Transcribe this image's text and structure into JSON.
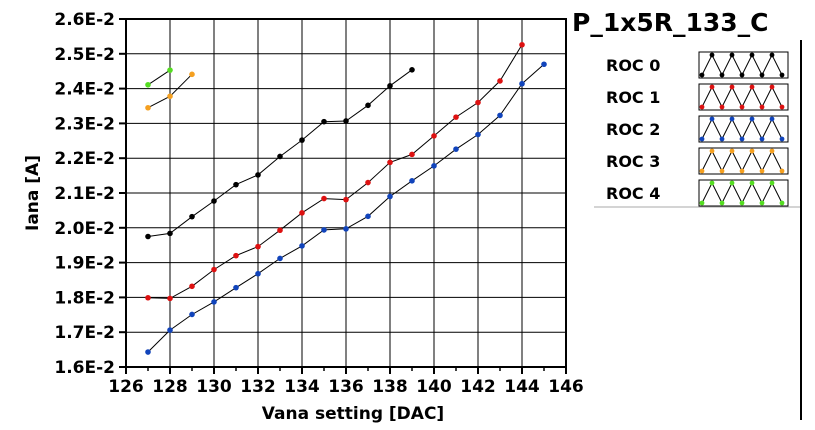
{
  "chart_data": {
    "type": "line",
    "title": "P_1x5R_133_C",
    "xlabel": "Vana setting [DAC]",
    "ylabel": "Iana [A]",
    "xlim": [
      126,
      146
    ],
    "ylim": [
      0.016,
      0.026
    ],
    "xticks": [
      126,
      128,
      130,
      132,
      134,
      136,
      138,
      140,
      142,
      144,
      146
    ],
    "yticks": [
      0.016,
      0.017,
      0.018,
      0.019,
      0.02,
      0.021,
      0.022,
      0.023,
      0.024,
      0.025,
      0.026
    ],
    "xtick_labels": [
      "126",
      "128",
      "130",
      "132",
      "134",
      "136",
      "138",
      "140",
      "142",
      "144",
      "146"
    ],
    "ytick_labels": [
      "1.6E-2",
      "1.7E-2",
      "1.8E-2",
      "1.9E-2",
      "2.0E-2",
      "2.1E-2",
      "2.2E-2",
      "2.3E-2",
      "2.4E-2",
      "2.5E-2",
      "2.6E-2"
    ],
    "grid": true,
    "legend_position": "right",
    "series": [
      {
        "name": "ROC 0",
        "color": "#000000",
        "x": [
          127,
          128,
          129,
          130,
          131,
          132,
          133,
          134,
          135,
          136,
          137,
          138,
          139
        ],
        "y": [
          0.01975,
          0.01984,
          0.02032,
          0.02077,
          0.02124,
          0.02152,
          0.02205,
          0.02252,
          0.02305,
          0.02307,
          0.02352,
          0.02408,
          0.02454
        ]
      },
      {
        "name": "ROC 1",
        "color": "#dd1111",
        "x": [
          127,
          128,
          129,
          130,
          131,
          132,
          133,
          134,
          135,
          136,
          137,
          138,
          139,
          140,
          141,
          142,
          143,
          144
        ],
        "y": [
          0.01799,
          0.01797,
          0.01832,
          0.0188,
          0.0192,
          0.01946,
          0.01993,
          0.02043,
          0.02084,
          0.02081,
          0.0213,
          0.02188,
          0.02211,
          0.02264,
          0.02318,
          0.0236,
          0.02422,
          0.02526
        ]
      },
      {
        "name": "ROC 2",
        "color": "#1144bb",
        "x": [
          127,
          128,
          129,
          130,
          131,
          132,
          133,
          134,
          135,
          136,
          137,
          138,
          139,
          140,
          141,
          142,
          143,
          144,
          145
        ],
        "y": [
          0.01643,
          0.01706,
          0.01751,
          0.01787,
          0.01828,
          0.01868,
          0.01912,
          0.01948,
          0.01994,
          0.01997,
          0.02033,
          0.0209,
          0.02135,
          0.02178,
          0.02226,
          0.02268,
          0.02323,
          0.02414,
          0.0247
        ]
      },
      {
        "name": "ROC 3",
        "color": "#f5a020",
        "x": [
          127,
          128,
          129
        ],
        "y": [
          0.02345,
          0.02378,
          0.02441
        ]
      },
      {
        "name": "ROC 4",
        "color": "#55dd22",
        "x": [
          127,
          128
        ],
        "y": [
          0.02411,
          0.02453
        ]
      }
    ]
  }
}
